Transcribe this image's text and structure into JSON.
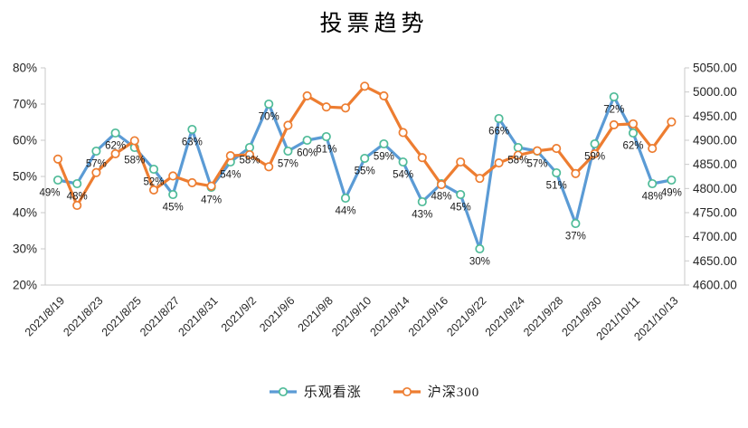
{
  "chart_data": {
    "type": "line",
    "title": "投票趋势",
    "point_count": 33,
    "x_tick_every": 2,
    "x_tick_labels": [
      "2021/8/19",
      "2021/8/23",
      "2021/8/25",
      "2021/8/27",
      "2021/8/31",
      "2021/9/2",
      "2021/9/6",
      "2021/9/8",
      "2021/9/10",
      "2021/9/14",
      "2021/9/16",
      "2021/9/22",
      "2021/9/24",
      "2021/9/28",
      "2021/9/30",
      "2021/10/11",
      "2021/10/13"
    ],
    "series": [
      {
        "name": "乐观看涨",
        "axis": "left",
        "line_color": "#5B9BD5",
        "marker_ring_color": "#4FBB98",
        "marker_fill": "#ffffff",
        "values": [
          49,
          48,
          57,
          62,
          58,
          52,
          45,
          63,
          47,
          54,
          58,
          70,
          57,
          60,
          61,
          44,
          55,
          59,
          54,
          43,
          48,
          45,
          30,
          66,
          58,
          57,
          51,
          37,
          59,
          72,
          62,
          48,
          49
        ],
        "data_labels": [
          "49%",
          "48%",
          "57%",
          "62%",
          "58%",
          "52%",
          "45%",
          "63%",
          "47%",
          "54%",
          "58%",
          "70%",
          "57%",
          "60%",
          "61%",
          "44%",
          "55%",
          "59%",
          "54%",
          "43%",
          "48%",
          "45%",
          "30%",
          "66%",
          "58%",
          "57%",
          "51%",
          "37%",
          "59%",
          "72%",
          "62%",
          "48%",
          "49%"
        ]
      },
      {
        "name": "沪深300",
        "axis": "right",
        "line_color": "#ED7D31",
        "marker_ring_color": "#ED7D31",
        "marker_fill": "#ffffff",
        "values": [
          4861,
          4765,
          4833,
          4872,
          4899,
          4797,
          4826,
          4812,
          4805,
          4868,
          4870,
          4845,
          4931,
          4992,
          4969,
          4967,
          5012,
          4992,
          4916,
          4864,
          4808,
          4855,
          4821,
          4853,
          4869,
          4878,
          4883,
          4831,
          4872,
          4932,
          4934,
          4883,
          4938
        ],
        "data_labels": []
      }
    ],
    "left_axis": {
      "min": 20,
      "max": 80,
      "ticks": [
        "80%",
        "70%",
        "60%",
        "50%",
        "40%",
        "30%",
        "20%"
      ]
    },
    "right_axis": {
      "min": 4600,
      "max": 5050,
      "ticks": [
        "5050.00",
        "5000.00",
        "4950.00",
        "4900.00",
        "4850.00",
        "4800.00",
        "4750.00",
        "4700.00",
        "4650.00",
        "4600.00"
      ]
    },
    "grid": false,
    "legend_position": "bottom",
    "colors": {
      "axis_line": "#C9C9C9",
      "tick_text": "#262626",
      "data_label_text": "#1a1a1a"
    }
  }
}
